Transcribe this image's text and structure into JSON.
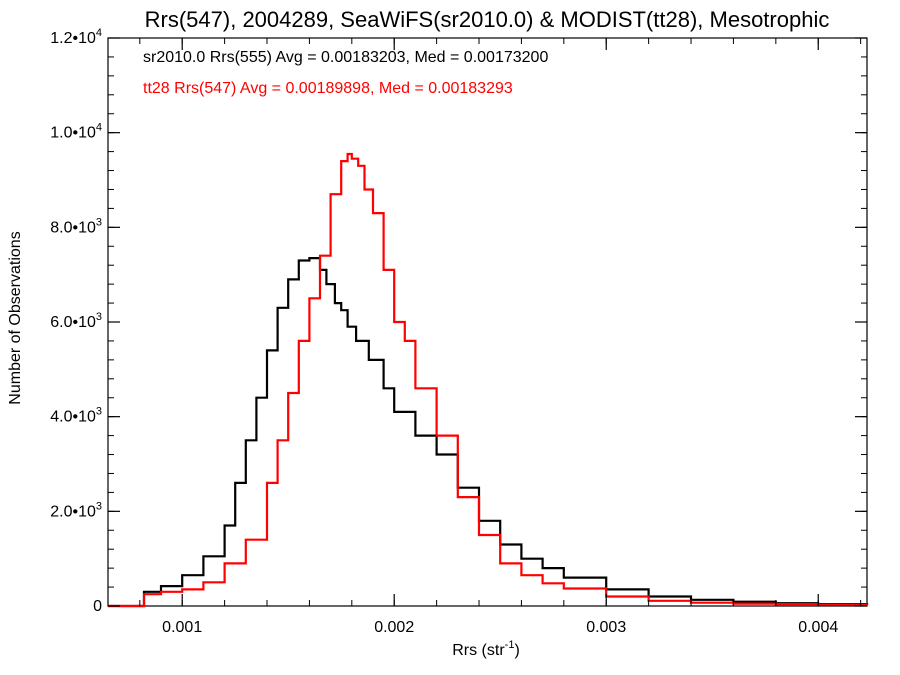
{
  "chart_data": {
    "type": "line",
    "title": "Rrs(547), 2004289, SeaWiFS(sr2010.0) & MODIST(tt28), Mesotrophic",
    "xlabel_main": "Rrs (str",
    "xlabel_sup": "-1",
    "xlabel_end": ")",
    "ylabel": "Number of Observations",
    "xlim": [
      0.00065,
      0.00423
    ],
    "ylim": [
      0,
      12000
    ],
    "xticks": [
      {
        "value": 0.001,
        "label": "0.001"
      },
      {
        "value": 0.002,
        "label": "0.002"
      },
      {
        "value": 0.003,
        "label": "0.003"
      },
      {
        "value": 0.004,
        "label": "0.004"
      }
    ],
    "yticks": [
      {
        "value": 0,
        "mant": "0",
        "exp": ""
      },
      {
        "value": 2000,
        "mant": "2.0•10",
        "exp": "3"
      },
      {
        "value": 4000,
        "mant": "4.0•10",
        "exp": "3"
      },
      {
        "value": 6000,
        "mant": "6.0•10",
        "exp": "3"
      },
      {
        "value": 8000,
        "mant": "8.0•10",
        "exp": "3"
      },
      {
        "value": 10000,
        "mant": "1.0•10",
        "exp": "4"
      },
      {
        "value": 12000,
        "mant": "1.2•10",
        "exp": "4"
      }
    ],
    "annotations": [
      {
        "text": "sr2010.0 Rrs(555) Avg = 0.00183203, Med = 0.00173200",
        "color": "#000000"
      },
      {
        "text": "tt28 Rrs(547) Avg = 0.00189898, Med = 0.00183293",
        "color": "#ff0000"
      }
    ],
    "series": [
      {
        "color": "#000000",
        "points": [
          [
            0.00065,
            0
          ],
          [
            0.0008,
            0
          ],
          [
            0.00082,
            300
          ],
          [
            0.0009,
            420
          ],
          [
            0.001,
            650
          ],
          [
            0.0011,
            1050
          ],
          [
            0.0012,
            1700
          ],
          [
            0.00125,
            2600
          ],
          [
            0.0013,
            3500
          ],
          [
            0.00135,
            4400
          ],
          [
            0.0014,
            5400
          ],
          [
            0.00145,
            6300
          ],
          [
            0.0015,
            6900
          ],
          [
            0.00155,
            7300
          ],
          [
            0.0016,
            7350
          ],
          [
            0.00165,
            7100
          ],
          [
            0.00168,
            6800
          ],
          [
            0.00172,
            6400
          ],
          [
            0.00175,
            6250
          ],
          [
            0.00178,
            5900
          ],
          [
            0.00182,
            5600
          ],
          [
            0.00188,
            5200
          ],
          [
            0.00195,
            4600
          ],
          [
            0.002,
            4100
          ],
          [
            0.0021,
            3600
          ],
          [
            0.0022,
            3200
          ],
          [
            0.0023,
            2500
          ],
          [
            0.0024,
            1800
          ],
          [
            0.0025,
            1300
          ],
          [
            0.0026,
            1000
          ],
          [
            0.0027,
            800
          ],
          [
            0.0028,
            600
          ],
          [
            0.003,
            350
          ],
          [
            0.0032,
            200
          ],
          [
            0.0034,
            130
          ],
          [
            0.0036,
            90
          ],
          [
            0.0038,
            60
          ],
          [
            0.004,
            40
          ],
          [
            0.00423,
            30
          ]
        ]
      },
      {
        "color": "#ff0000",
        "points": [
          [
            0.00065,
            0
          ],
          [
            0.0008,
            0
          ],
          [
            0.00082,
            250
          ],
          [
            0.0009,
            300
          ],
          [
            0.001,
            350
          ],
          [
            0.0011,
            500
          ],
          [
            0.0012,
            900
          ],
          [
            0.0013,
            1400
          ],
          [
            0.0014,
            2600
          ],
          [
            0.00145,
            3500
          ],
          [
            0.0015,
            4500
          ],
          [
            0.00155,
            5600
          ],
          [
            0.0016,
            6500
          ],
          [
            0.00165,
            7400
          ],
          [
            0.0017,
            8700
          ],
          [
            0.00175,
            9400
          ],
          [
            0.00178,
            9550
          ],
          [
            0.0018,
            9450
          ],
          [
            0.00183,
            9300
          ],
          [
            0.00186,
            8800
          ],
          [
            0.0019,
            8300
          ],
          [
            0.00195,
            7100
          ],
          [
            0.002,
            6000
          ],
          [
            0.00205,
            5600
          ],
          [
            0.0021,
            4600
          ],
          [
            0.0022,
            3600
          ],
          [
            0.0023,
            2300
          ],
          [
            0.0024,
            1500
          ],
          [
            0.0025,
            900
          ],
          [
            0.0026,
            650
          ],
          [
            0.0027,
            480
          ],
          [
            0.0028,
            370
          ],
          [
            0.003,
            200
          ],
          [
            0.0032,
            110
          ],
          [
            0.0034,
            70
          ],
          [
            0.0036,
            50
          ],
          [
            0.0038,
            40
          ],
          [
            0.004,
            30
          ],
          [
            0.00423,
            20
          ]
        ]
      }
    ]
  }
}
